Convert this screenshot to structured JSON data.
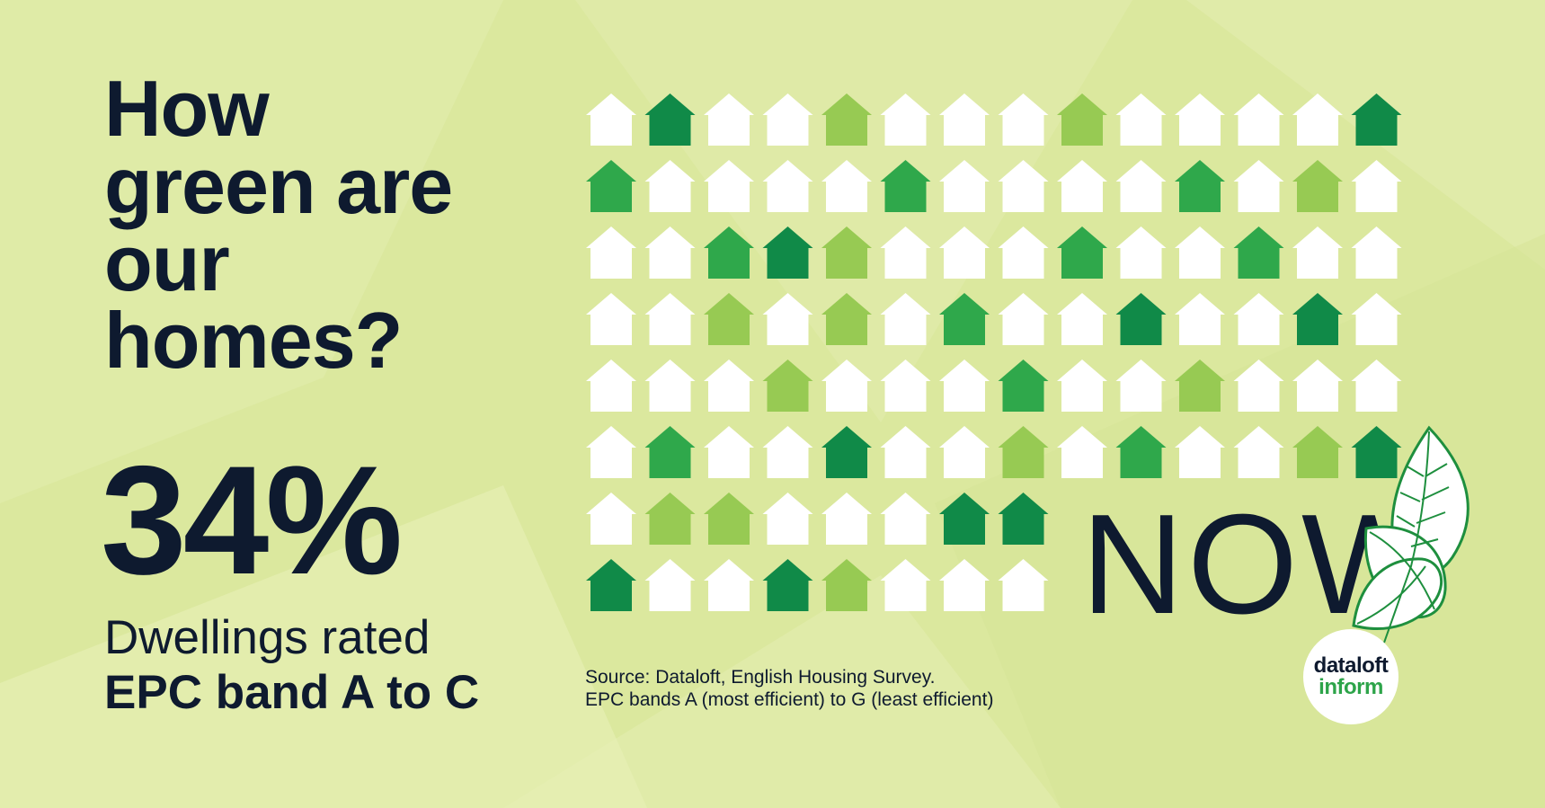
{
  "headline": "How green are our homes?",
  "stat": {
    "value": "34%",
    "line1": "Dwellings rated",
    "line2": "EPC band A to C"
  },
  "now_label": "NOW",
  "source": {
    "line1": "Source: Dataloft, English Housing Survey.",
    "line2": "EPC bands A (most efficient) to G (least efficient)"
  },
  "logo": {
    "line1": "dataloft",
    "line2": "inform"
  },
  "colors": {
    "background": "#dbe89e",
    "text": "#0e1a2f",
    "white": "#ffffff",
    "dark_green": "#108a48",
    "mid_green": "#2fa84b",
    "light_green": "#97ca53",
    "logo_green": "#2da44a"
  },
  "icons": [
    "house-icon",
    "leaf-icon"
  ],
  "house_grid": [
    [
      "white",
      "dark",
      "white",
      "white",
      "light",
      "white",
      "white",
      "white",
      "light",
      "white",
      "white",
      "white",
      "white",
      "dark"
    ],
    [
      "mid",
      "white",
      "white",
      "white",
      "white",
      "mid",
      "white",
      "white",
      "white",
      "white",
      "mid",
      "white",
      "light",
      "white"
    ],
    [
      "white",
      "white",
      "mid",
      "dark",
      "light",
      "white",
      "white",
      "white",
      "mid",
      "white",
      "white",
      "mid",
      "white",
      "white"
    ],
    [
      "white",
      "white",
      "light",
      "white",
      "light",
      "white",
      "mid",
      "white",
      "white",
      "dark",
      "white",
      "white",
      "dark",
      "white"
    ],
    [
      "white",
      "white",
      "white",
      "light",
      "white",
      "white",
      "white",
      "mid",
      "white",
      "white",
      "light",
      "white",
      "white",
      "white"
    ],
    [
      "white",
      "mid",
      "white",
      "white",
      "dark",
      "white",
      "white",
      "light",
      "white",
      "mid",
      "white",
      "white",
      "light",
      "dark"
    ],
    [
      "white",
      "light",
      "light",
      "white",
      "white",
      "white",
      "dark",
      "dark"
    ],
    [
      "dark",
      "white",
      "white",
      "dark",
      "light",
      "white",
      "white",
      "white"
    ]
  ]
}
